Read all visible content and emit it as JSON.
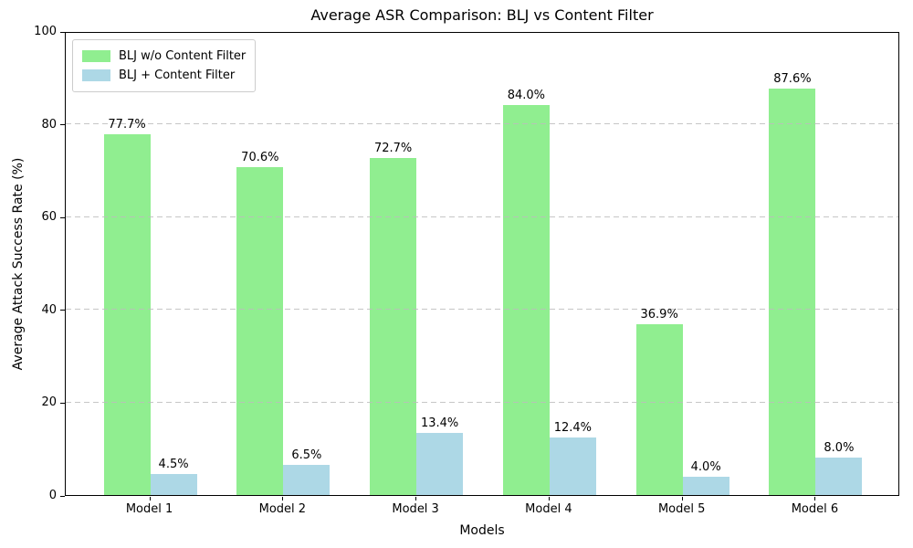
{
  "chart_data": {
    "type": "bar",
    "title": "Average ASR Comparison: BLJ vs Content Filter",
    "xlabel": "Models",
    "ylabel": "Average Attack Success Rate (%)",
    "categories": [
      "Model 1",
      "Model 2",
      "Model 3",
      "Model 4",
      "Model 5",
      "Model 6"
    ],
    "series": [
      {
        "name": "BLJ w/o Content Filter",
        "color": "#90EE90",
        "values": [
          77.7,
          70.6,
          72.7,
          84.0,
          36.9,
          87.6
        ],
        "bar_labels": [
          "77.7%",
          "70.6%",
          "72.7%",
          "84.0%",
          "36.9%",
          "87.6%"
        ]
      },
      {
        "name": "BLJ + Content Filter",
        "color": "#ADD8E6",
        "values": [
          4.5,
          6.5,
          13.4,
          12.4,
          4.0,
          8.0
        ],
        "bar_labels": [
          "4.5%",
          "6.5%",
          "13.4%",
          "12.4%",
          "4.0%",
          "8.0%"
        ]
      }
    ],
    "ylim": [
      0,
      100
    ],
    "yticks": [
      0,
      20,
      40,
      60,
      80,
      100
    ],
    "grid": "horizontal-dashed",
    "grid_color": "#bcbcbc",
    "legend_position": "upper-left"
  }
}
